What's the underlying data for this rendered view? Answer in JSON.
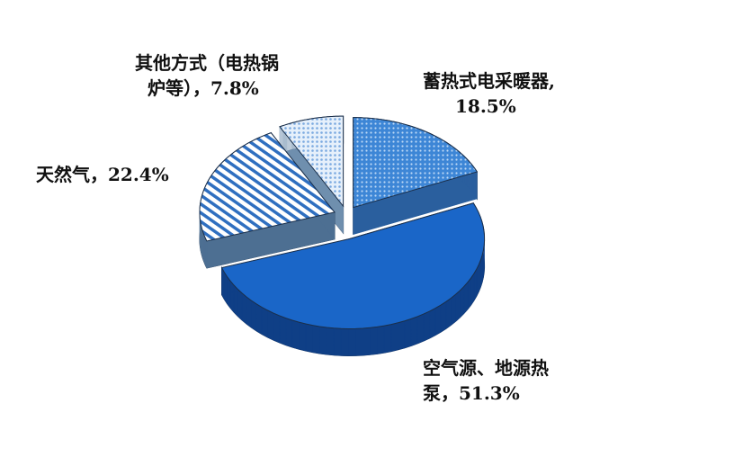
{
  "chart_data": {
    "type": "pie",
    "style": "3d-exploded",
    "start": "top, clockwise",
    "slices": [
      {
        "label": "蓄热式电采暖器",
        "value": 18.5,
        "value_text": "18.5%",
        "color": "#4a90d9",
        "pattern": "dots"
      },
      {
        "label": "空气源、地源热泵",
        "value": 51.3,
        "value_text": "51.3%",
        "color": "#1a66c8",
        "pattern": "solid"
      },
      {
        "label": "天然气",
        "value": 22.4,
        "value_text": "22.4%",
        "color": "#2f6fc0",
        "pattern": "horizontal-stripes"
      },
      {
        "label": "其他方式（电热锅炉等）",
        "value": 7.8,
        "value_text": "7.8%",
        "color": "#8db8e8",
        "pattern": "light-dots"
      }
    ],
    "labels": {
      "s0_line1": "蓄热式电采暖器,",
      "s0_line2": "18.5%",
      "s1_line1": "空气源、地源热",
      "s1_line2": "泵，51.3%",
      "s2_line1": "天然气，22.4%",
      "s3_line1": "其他方式（电热锅",
      "s3_line2": "炉等），7.8%"
    }
  }
}
